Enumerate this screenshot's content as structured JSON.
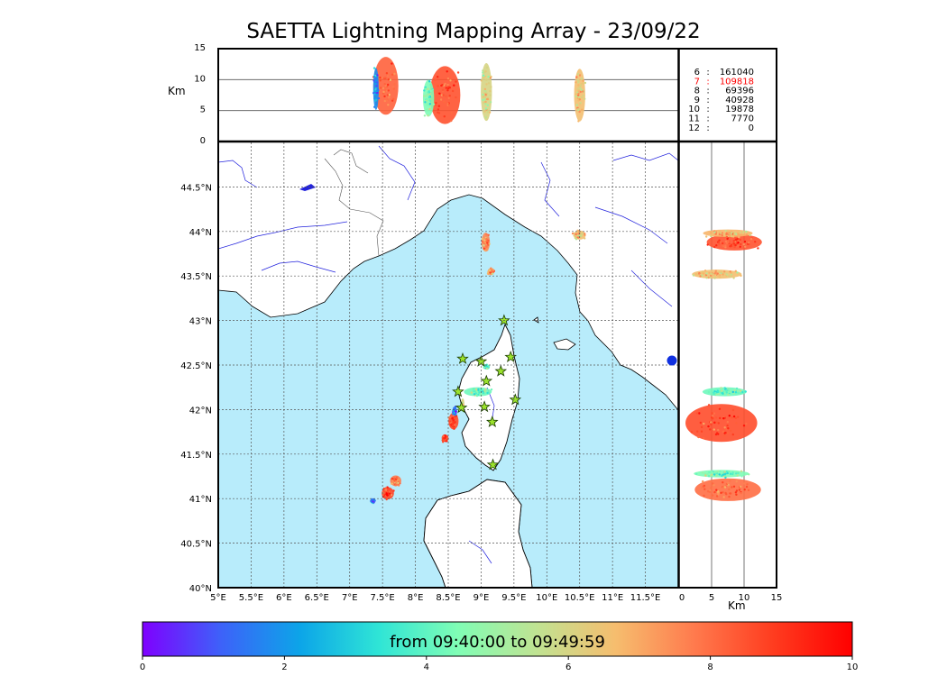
{
  "title": "SAETTA Lightning Mapping Array - 23/09/22",
  "colors": {
    "sea": "#b8ecfb",
    "coast": "#000000",
    "rivers": "#2222dd",
    "borders": "#555555",
    "grid": "#555555",
    "station_fill": "#9be22c",
    "highlight": "#ff0000"
  },
  "stats": [
    {
      "stations": "6",
      "count": "161040",
      "highlight": false
    },
    {
      "stations": "7",
      "count": "109818",
      "highlight": true
    },
    {
      "stations": "8",
      "count": "69396",
      "highlight": false
    },
    {
      "stations": "9",
      "count": "40928",
      "highlight": false
    },
    {
      "stations": "10",
      "count": "19878",
      "highlight": false
    },
    {
      "stations": "11",
      "count": "7770",
      "highlight": false
    },
    {
      "stations": "12",
      "count": "0",
      "highlight": false
    }
  ],
  "stats_sep": ":",
  "colorbar": {
    "label": "from 09:40:00 to 09:49:59",
    "ticks": [
      "0",
      "2",
      "4",
      "6",
      "8",
      "10"
    ],
    "colors": [
      "#7f00ff",
      "#3d62f9",
      "#0ca5e8",
      "#2fe5d6",
      "#80fdb5",
      "#c0e392",
      "#f6bd6e",
      "#ff7a4d",
      "#ff3c1f",
      "#ff0000"
    ]
  },
  "chart_data": [
    {
      "type": "scatter",
      "name": "map",
      "xlim": [
        5,
        12
      ],
      "ylim": [
        40,
        45
      ],
      "xticks": [
        5,
        5.5,
        6,
        6.5,
        7,
        7.5,
        8,
        8.5,
        9,
        9.5,
        10,
        10.5,
        11,
        11.5
      ],
      "xtick_labels": [
        "5°E",
        "5.5°E",
        "6°E",
        "6.5°E",
        "7°E",
        "7.5°E",
        "8°E",
        "8.5°E",
        "9°E",
        "9.5°E",
        "10°E",
        "10.5°E",
        "11°E",
        "11.5°E"
      ],
      "yticks": [
        40,
        40.5,
        41,
        41.5,
        42,
        42.5,
        43,
        43.5,
        44,
        44.5
      ],
      "ytick_labels": [
        "40°N",
        "40.5°N",
        "41°N",
        "41.5°N",
        "42°N",
        "42.5°N",
        "43°N",
        "43.5°N",
        "44°N",
        "44.5°N"
      ],
      "grid": true,
      "stations": [
        {
          "lon": 9.35,
          "lat": 43.0
        },
        {
          "lon": 8.72,
          "lat": 42.57
        },
        {
          "lon": 9.0,
          "lat": 42.54
        },
        {
          "lon": 9.45,
          "lat": 42.59
        },
        {
          "lon": 9.3,
          "lat": 42.43
        },
        {
          "lon": 9.08,
          "lat": 42.32
        },
        {
          "lon": 8.65,
          "lat": 42.2
        },
        {
          "lon": 9.52,
          "lat": 42.11
        },
        {
          "lon": 8.7,
          "lat": 42.02
        },
        {
          "lon": 9.05,
          "lat": 42.03
        },
        {
          "lon": 9.17,
          "lat": 41.86
        },
        {
          "lon": 9.18,
          "lat": 41.38
        }
      ],
      "clusters": [
        {
          "lon": 9.07,
          "lat": 43.88,
          "w": 0.15,
          "h": 0.25,
          "time": 7.5
        },
        {
          "lon": 9.15,
          "lat": 43.55,
          "w": 0.12,
          "h": 0.09,
          "time": 7.2
        },
        {
          "lon": 10.5,
          "lat": 43.96,
          "w": 0.22,
          "h": 0.12,
          "time": 6.6
        },
        {
          "lon": 8.58,
          "lat": 41.87,
          "w": 0.18,
          "h": 0.22,
          "time": 8.6
        },
        {
          "lon": 8.6,
          "lat": 41.98,
          "w": 0.08,
          "h": 0.12,
          "time": 1.2
        },
        {
          "lon": 8.72,
          "lat": 42.05,
          "w": 0.06,
          "h": 0.18,
          "time": 5.8
        },
        {
          "lon": 8.45,
          "lat": 41.68,
          "w": 0.12,
          "h": 0.1,
          "time": 8.8
        },
        {
          "lon": 8.95,
          "lat": 42.2,
          "w": 0.5,
          "h": 0.12,
          "time": 4.2
        },
        {
          "lon": 9.08,
          "lat": 42.48,
          "w": 0.12,
          "h": 0.07,
          "time": 4.0
        },
        {
          "lon": 7.7,
          "lat": 41.2,
          "w": 0.2,
          "h": 0.14,
          "time": 7.8
        },
        {
          "lon": 7.58,
          "lat": 41.06,
          "w": 0.22,
          "h": 0.16,
          "time": 8.8
        },
        {
          "lon": 7.35,
          "lat": 40.97,
          "w": 0.08,
          "h": 0.06,
          "time": 1.8
        }
      ]
    },
    {
      "type": "scatter",
      "name": "altitude-longitude",
      "xlim": [
        5,
        12
      ],
      "ylim": [
        0,
        15
      ],
      "yticks": [
        0,
        5,
        10,
        15
      ],
      "ylabel": "Km",
      "clusters": [
        {
          "lon": 7.55,
          "alt": 9.0,
          "w": 0.45,
          "h": 11,
          "time": 8.2
        },
        {
          "lon": 7.4,
          "alt": 8.5,
          "w": 0.1,
          "h": 8,
          "time": 1.8
        },
        {
          "lon": 8.45,
          "alt": 7.5,
          "w": 0.55,
          "h": 11,
          "time": 8.5
        },
        {
          "lon": 8.2,
          "alt": 7.0,
          "w": 0.2,
          "h": 7,
          "time": 4.4
        },
        {
          "lon": 9.08,
          "alt": 8.0,
          "w": 0.2,
          "h": 11,
          "time": 6.0
        },
        {
          "lon": 10.5,
          "alt": 7.5,
          "w": 0.2,
          "h": 10,
          "time": 6.6
        }
      ]
    },
    {
      "type": "scatter",
      "name": "latitude-altitude",
      "xlim": [
        0,
        15
      ],
      "ylim": [
        40,
        45
      ],
      "xticks": [
        0,
        5,
        10,
        15
      ],
      "xlabel": "Km",
      "clusters": [
        {
          "alt": 8.5,
          "lat": 43.88,
          "w": 10,
          "h": 0.22,
          "time": 8.5
        },
        {
          "alt": 7.5,
          "lat": 43.98,
          "w": 9,
          "h": 0.1,
          "time": 6.8
        },
        {
          "alt": 5.8,
          "lat": 43.52,
          "w": 9,
          "h": 0.12,
          "time": 6.6
        },
        {
          "alt": 6.5,
          "lat": 41.85,
          "w": 13,
          "h": 0.5,
          "time": 8.6
        },
        {
          "alt": 7.0,
          "lat": 42.2,
          "w": 8,
          "h": 0.12,
          "time": 4.2
        },
        {
          "alt": 7.5,
          "lat": 41.1,
          "w": 12,
          "h": 0.3,
          "time": 8.0
        },
        {
          "alt": 6.5,
          "lat": 41.28,
          "w": 10,
          "h": 0.1,
          "time": 4.4
        }
      ]
    }
  ]
}
